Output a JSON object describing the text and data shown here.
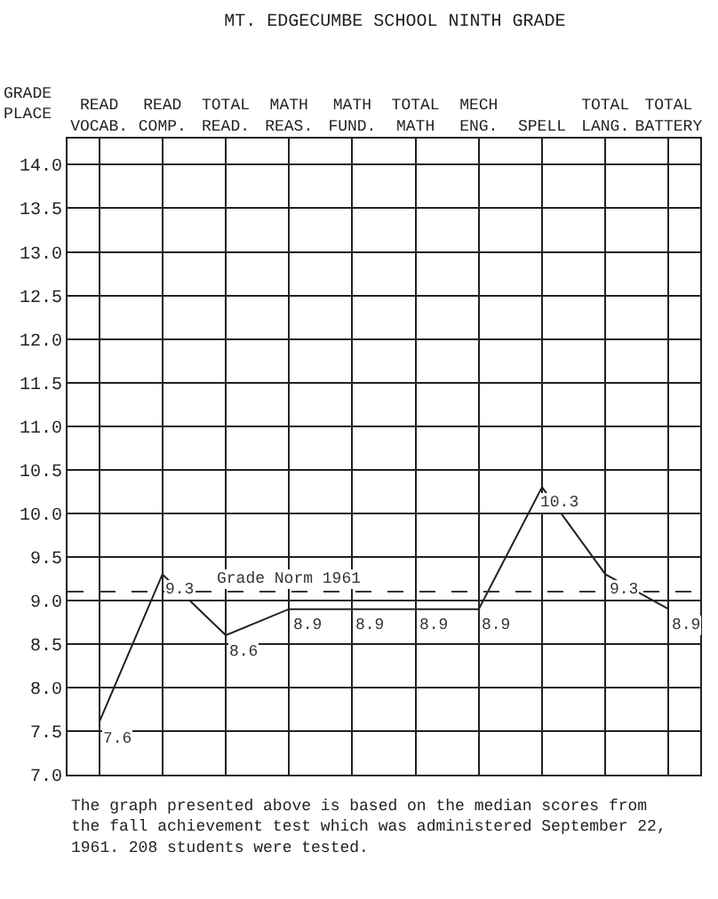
{
  "chart_data": {
    "type": "line",
    "title": "MT. EDGECUMBE SCHOOL NINTH GRADE",
    "ylabel": "GRADE PLACE",
    "categories": [
      "READ VOCAB.",
      "READ COMP.",
      "TOTAL READ.",
      "MATH REAS.",
      "MATH FUND.",
      "TOTAL MATH",
      "MECH ENG.",
      "SPELL",
      "TOTAL LANG.",
      "TOTAL BATTERY"
    ],
    "series": [
      {
        "color": "#222222",
        "values": [
          7.6,
          9.3,
          8.6,
          8.9,
          8.9,
          8.9,
          8.9,
          10.3,
          9.3,
          8.9
        ]
      }
    ],
    "ylim": [
      7.0,
      14.3
    ],
    "yticks": [
      {
        "value": 7.0,
        "label": "7.0"
      },
      {
        "value": 7.5,
        "label": "7.5"
      },
      {
        "value": 8.0,
        "label": "8.0"
      },
      {
        "value": 8.5,
        "label": "8.5"
      },
      {
        "value": 9.0,
        "label": "9.0"
      },
      {
        "value": 9.5,
        "label": "9.5"
      },
      {
        "value": 10.0,
        "label": "10.0"
      },
      {
        "value": 10.5,
        "label": "10.5"
      },
      {
        "value": 11.0,
        "label": "11.0"
      },
      {
        "value": 11.5,
        "label": "11.5"
      },
      {
        "value": 12.0,
        "label": "12.0"
      },
      {
        "value": 12.5,
        "label": "12.5"
      },
      {
        "value": 13.0,
        "label": "13.0"
      },
      {
        "value": 13.5,
        "label": "13.5"
      },
      {
        "value": 14.0,
        "label": "14.0"
      }
    ],
    "ref_lines": [
      {
        "axis": "y",
        "value": 9.1,
        "label": "Grade Norm 1961",
        "color": "#333333",
        "line_style": "dashed"
      }
    ],
    "annotations": [
      "The graph presented above is based on the median scores from the fall achievement test which was administered September 22, 1961. 208 students were tested."
    ],
    "data_labels": true,
    "grid": true,
    "marker": "none",
    "line_style": "solid"
  }
}
